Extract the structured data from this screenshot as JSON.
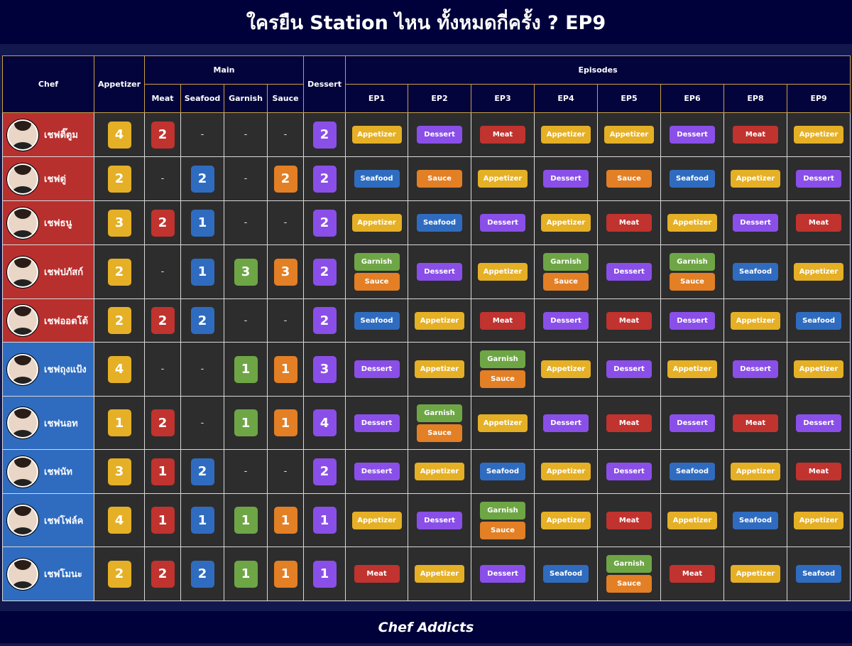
{
  "header": {
    "title": "ใครยืน Station ไหน ทั้งหมดกี่ครั้ง ? EP9"
  },
  "table": {
    "columns": {
      "chef": "Chef",
      "appetizer": "Appetizer",
      "main": "Main",
      "main_sub": [
        "Meat",
        "Seafood",
        "Garnish",
        "Sauce"
      ],
      "dessert": "Dessert",
      "episodes": "Episodes",
      "episode_list": [
        "EP1",
        "EP2",
        "EP3",
        "EP4",
        "EP5",
        "EP6",
        "EP8",
        "EP9"
      ]
    },
    "count_colors": [
      "#e5b026",
      "#c0332f",
      "#2f6cc0",
      "#6ea646",
      "#e37f25",
      "#8a4fe8"
    ],
    "station_colors": {
      "Appetizer": "#e5b026",
      "Meat": "#c0332f",
      "Seafood": "#2f6cc0",
      "Garnish": "#6ea646",
      "Sauce": "#e37f25",
      "Dessert": "#8a4fe8"
    },
    "rows": [
      {
        "chef": "เชฟติ๊ตูม",
        "color": "#b8302e",
        "counts": [
          4,
          2,
          "-",
          "-",
          "-",
          2
        ],
        "episodes": [
          [
            "Appetizer"
          ],
          [
            "Dessert"
          ],
          [
            "Meat"
          ],
          [
            "Appetizer"
          ],
          [
            "Appetizer"
          ],
          [
            "Dessert"
          ],
          [
            "Meat"
          ],
          [
            "Appetizer"
          ]
        ]
      },
      {
        "chef": "เชฟตู่",
        "color": "#b8302e",
        "counts": [
          2,
          "-",
          2,
          "-",
          2,
          2
        ],
        "episodes": [
          [
            "Seafood"
          ],
          [
            "Sauce"
          ],
          [
            "Appetizer"
          ],
          [
            "Dessert"
          ],
          [
            "Sauce"
          ],
          [
            "Seafood"
          ],
          [
            "Appetizer"
          ],
          [
            "Dessert"
          ]
        ]
      },
      {
        "chef": "เชฟธนู",
        "color": "#b8302e",
        "counts": [
          3,
          2,
          1,
          "-",
          "-",
          2
        ],
        "episodes": [
          [
            "Appetizer"
          ],
          [
            "Seafood"
          ],
          [
            "Dessert"
          ],
          [
            "Appetizer"
          ],
          [
            "Meat"
          ],
          [
            "Appetizer"
          ],
          [
            "Dessert"
          ],
          [
            "Meat"
          ]
        ]
      },
      {
        "chef": "เชฟปภัสก์",
        "color": "#b8302e",
        "counts": [
          2,
          "-",
          1,
          3,
          3,
          2
        ],
        "episodes": [
          [
            "Garnish",
            "Sauce"
          ],
          [
            "Dessert"
          ],
          [
            "Appetizer"
          ],
          [
            "Garnish",
            "Sauce"
          ],
          [
            "Dessert"
          ],
          [
            "Garnish",
            "Sauce"
          ],
          [
            "Seafood"
          ],
          [
            "Appetizer"
          ]
        ]
      },
      {
        "chef": "เชฟออตโต้",
        "color": "#b8302e",
        "counts": [
          2,
          2,
          2,
          "-",
          "-",
          2
        ],
        "episodes": [
          [
            "Seafood"
          ],
          [
            "Appetizer"
          ],
          [
            "Meat"
          ],
          [
            "Dessert"
          ],
          [
            "Meat"
          ],
          [
            "Dessert"
          ],
          [
            "Appetizer"
          ],
          [
            "Seafood"
          ]
        ]
      },
      {
        "chef": "เชฟถุงแป้ง",
        "color": "#2f6cc0",
        "counts": [
          4,
          "-",
          "-",
          1,
          1,
          3
        ],
        "episodes": [
          [
            "Dessert"
          ],
          [
            "Appetizer"
          ],
          [
            "Garnish",
            "Sauce"
          ],
          [
            "Appetizer"
          ],
          [
            "Dessert"
          ],
          [
            "Appetizer"
          ],
          [
            "Dessert"
          ],
          [
            "Appetizer"
          ]
        ]
      },
      {
        "chef": "เชฟนอท",
        "color": "#2f6cc0",
        "counts": [
          1,
          2,
          "-",
          1,
          1,
          4
        ],
        "episodes": [
          [
            "Dessert"
          ],
          [
            "Garnish",
            "Sauce"
          ],
          [
            "Appetizer"
          ],
          [
            "Dessert"
          ],
          [
            "Meat"
          ],
          [
            "Dessert"
          ],
          [
            "Meat"
          ],
          [
            "Dessert"
          ]
        ]
      },
      {
        "chef": "เชฟนัท",
        "color": "#2f6cc0",
        "counts": [
          3,
          1,
          2,
          "-",
          "-",
          2
        ],
        "episodes": [
          [
            "Dessert"
          ],
          [
            "Appetizer"
          ],
          [
            "Seafood"
          ],
          [
            "Appetizer"
          ],
          [
            "Dessert"
          ],
          [
            "Seafood"
          ],
          [
            "Appetizer"
          ],
          [
            "Meat"
          ]
        ]
      },
      {
        "chef": "เชฟโฟล์ค",
        "color": "#2f6cc0",
        "counts": [
          4,
          1,
          1,
          1,
          1,
          1
        ],
        "episodes": [
          [
            "Appetizer"
          ],
          [
            "Dessert"
          ],
          [
            "Garnish",
            "Sauce"
          ],
          [
            "Appetizer"
          ],
          [
            "Meat"
          ],
          [
            "Appetizer"
          ],
          [
            "Seafood"
          ],
          [
            "Appetizer"
          ]
        ]
      },
      {
        "chef": "เชฟโมนะ",
        "color": "#2f6cc0",
        "counts": [
          2,
          2,
          2,
          1,
          1,
          1
        ],
        "episodes": [
          [
            "Meat"
          ],
          [
            "Appetizer"
          ],
          [
            "Dessert"
          ],
          [
            "Seafood"
          ],
          [
            "Garnish",
            "Sauce"
          ],
          [
            "Meat"
          ],
          [
            "Appetizer"
          ],
          [
            "Seafood"
          ]
        ]
      }
    ]
  },
  "footer": {
    "text": "Chef Addicts"
  }
}
